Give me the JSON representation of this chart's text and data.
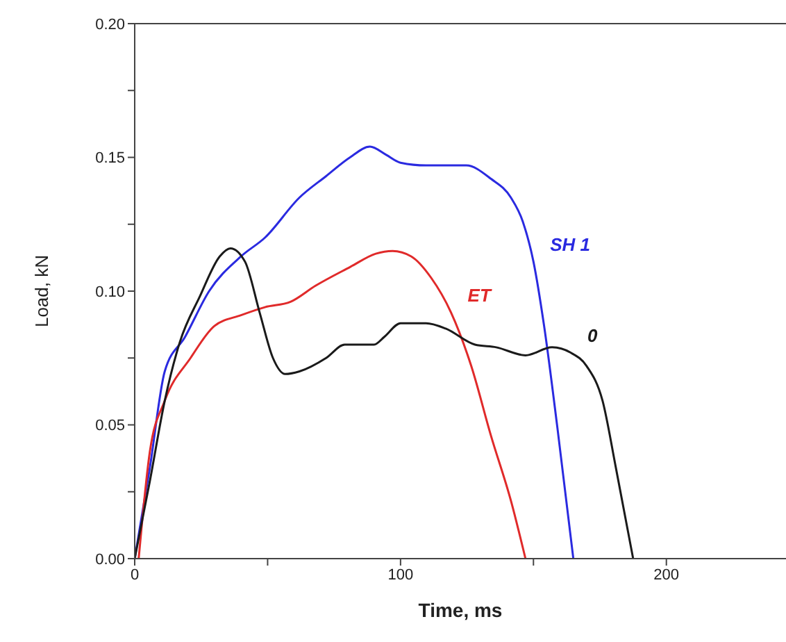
{
  "chart_data": {
    "type": "line",
    "xlabel": "Time, ms",
    "ylabel": "Load, kN",
    "xlim": [
      0,
      245
    ],
    "ylim": [
      0,
      0.2
    ],
    "xticks": [
      0,
      {
        "value": 50,
        "label": null
      },
      100,
      {
        "value": 150,
        "label": null
      },
      200
    ],
    "yticks": [
      {
        "value": 0,
        "label": "0.00"
      },
      {
        "value": 0.025,
        "label": null
      },
      {
        "value": 0.05,
        "label": "0.05"
      },
      {
        "value": 0.075,
        "label": null
      },
      {
        "value": 0.1,
        "label": "0.10"
      },
      {
        "value": 0.125,
        "label": null
      },
      {
        "value": 0.15,
        "label": "0.15"
      },
      {
        "value": 0.175,
        "label": null
      },
      {
        "value": 0.2,
        "label": "0.20"
      }
    ],
    "grid": false,
    "legend": false,
    "marker": "none",
    "line_style": "solid",
    "series": [
      {
        "name": "SH 1",
        "color": "#2a2ae0",
        "x": [
          0,
          5.7,
          11.3,
          19,
          28,
          40,
          49,
          62,
          72,
          81,
          88.5,
          94.5,
          100,
          109.6,
          124.7,
          134,
          141.5,
          146,
          150,
          154,
          159,
          165
        ],
        "values": [
          0,
          0.034,
          0.07,
          0.083,
          0.1,
          0.113,
          0.12,
          0.135,
          0.143,
          0.15,
          0.154,
          0.151,
          0.148,
          0.147,
          0.147,
          0.142,
          0.135,
          0.126,
          0.111,
          0.087,
          0.049,
          0
        ]
      },
      {
        "name": "ET",
        "color": "#e02a2a",
        "x": [
          1.5,
          5.7,
          11.3,
          21,
          30,
          40,
          49,
          58.6,
          68,
          81,
          90.7,
          97,
          104,
          111.5,
          119,
          126.6,
          134,
          141.7,
          147
        ],
        "values": [
          0,
          0.04,
          0.059,
          0.075,
          0.087,
          0.091,
          0.094,
          0.096,
          0.102,
          0.109,
          0.114,
          0.115,
          0.113,
          0.105,
          0.092,
          0.072,
          0.046,
          0.021,
          0
        ]
      },
      {
        "name": "0",
        "color": "#1a1a1a",
        "x": [
          0,
          5.7,
          11.3,
          17,
          24.5,
          32,
          36,
          41.5,
          47,
          52,
          56.6,
          62,
          72,
          79,
          90,
          94,
          100,
          109.6,
          117,
          128,
          136,
          147,
          157,
          164,
          170,
          176,
          181,
          187.5
        ],
        "values": [
          0,
          0.029,
          0.059,
          0.081,
          0.098,
          0.113,
          0.116,
          0.111,
          0.092,
          0.075,
          0.069,
          0.07,
          0.075,
          0.08,
          0.08,
          0.083,
          0.088,
          0.088,
          0.086,
          0.08,
          0.079,
          0.076,
          0.079,
          0.077,
          0.072,
          0.059,
          0.034,
          0
        ]
      }
    ]
  }
}
